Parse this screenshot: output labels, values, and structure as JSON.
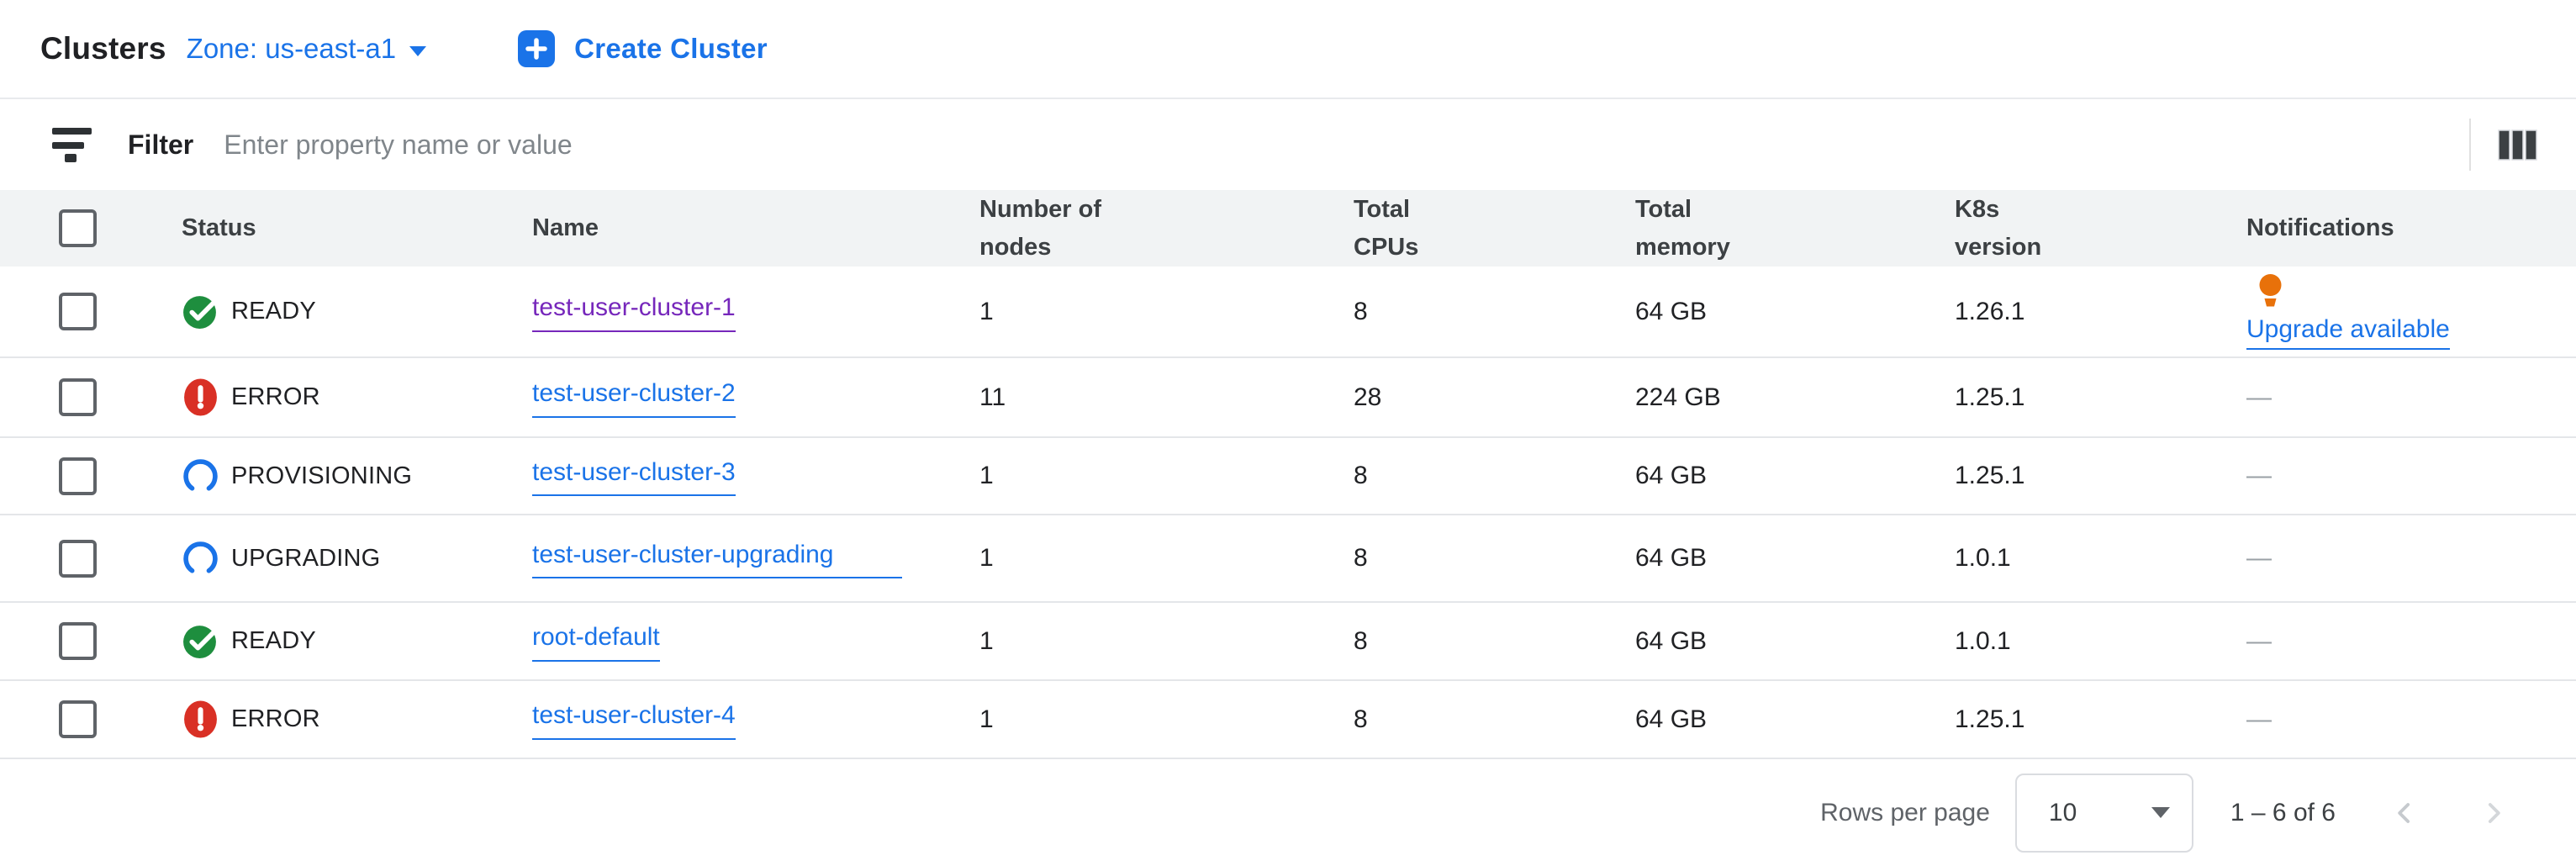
{
  "header": {
    "title": "Clusters",
    "zone_label": "Zone: us-east-a1",
    "create_button": "Create Cluster"
  },
  "filter": {
    "label": "Filter",
    "placeholder": "Enter property name or value"
  },
  "table": {
    "columns": [
      "Status",
      "Name",
      "Number of nodes",
      "Total CPUs",
      "Total memory",
      "K8s version",
      "Notifications"
    ],
    "rows": [
      {
        "status": "READY",
        "status_kind": "ready",
        "name": "test-user-cluster-1",
        "visited": true,
        "nodes": "1",
        "cpus": "8",
        "memory": "64 GB",
        "k8s": "1.26.1",
        "notification": "Upgrade available",
        "notification_link": true
      },
      {
        "status": "ERROR",
        "status_kind": "error",
        "name": "test-user-cluster-2",
        "visited": false,
        "nodes": "11",
        "cpus": "28",
        "memory": "224 GB",
        "k8s": "1.25.1",
        "notification": "—",
        "notification_link": false
      },
      {
        "status": "PROVISIONING",
        "status_kind": "progress",
        "name": "test-user-cluster-3",
        "visited": false,
        "nodes": "1",
        "cpus": "8",
        "memory": "64 GB",
        "k8s": "1.25.1",
        "notification": "—",
        "notification_link": false
      },
      {
        "status": "UPGRADING",
        "status_kind": "progress",
        "name": "test-user-cluster-upgrading",
        "visited": false,
        "nodes": "1",
        "cpus": "8",
        "memory": "64 GB",
        "k8s": "1.0.1",
        "notification": "—",
        "notification_link": false
      },
      {
        "status": "READY",
        "status_kind": "ready",
        "name": "root-default",
        "visited": false,
        "nodes": "1",
        "cpus": "8",
        "memory": "64 GB",
        "k8s": "1.0.1",
        "notification": "—",
        "notification_link": false
      },
      {
        "status": "ERROR",
        "status_kind": "error",
        "name": "test-user-cluster-4",
        "visited": false,
        "nodes": "1",
        "cpus": "8",
        "memory": "64 GB",
        "k8s": "1.25.1",
        "notification": "—",
        "notification_link": false
      }
    ]
  },
  "pagination": {
    "rows_per_page_label": "Rows per page",
    "rows_per_page_value": "10",
    "range": "1 – 6 of 6"
  },
  "icons": {
    "ready": "check-circle",
    "error": "error-exclamation-circle",
    "progress": "progress-arc-spinner",
    "notification": "lightbulb",
    "filter": "filter-funnel-bars",
    "columns": "column-display-options",
    "add": "plus-square"
  },
  "colors": {
    "accent_blue": "#1a73e8",
    "status_green": "#1e8e3e",
    "status_red": "#d93025",
    "progress_blue": "#1a73e8",
    "bulb_orange": "#e8710a",
    "visited_purple": "#7627bb",
    "header_bg": "#f1f3f4",
    "divider": "#e4e6e9",
    "muted_text": "#5f6368"
  }
}
